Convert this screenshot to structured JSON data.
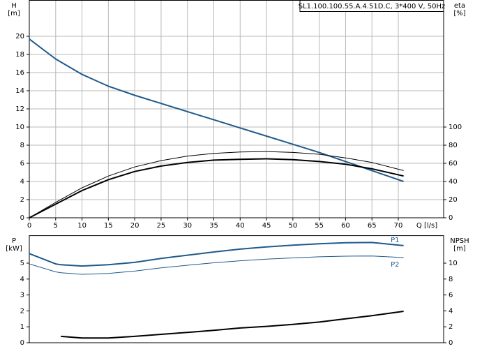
{
  "chart_data": [
    {
      "type": "line",
      "title": "SL1.100.100.55.A.4.51D.C, 3*400 V, 50Hz",
      "x_label": "Q [l/s]",
      "y_label": "H",
      "y_unit": "[m]",
      "y2_label": "eta",
      "y2_unit": "[%]",
      "x": [
        0,
        5,
        10,
        15,
        20,
        25,
        30,
        35,
        40,
        45,
        50,
        55,
        60,
        65,
        71
      ],
      "xlim": [
        0,
        78.6
      ],
      "xticks": [
        0,
        5,
        10,
        15,
        20,
        25,
        30,
        35,
        40,
        45,
        50,
        55,
        60,
        65,
        70
      ],
      "ylim": [
        0,
        24
      ],
      "yticks": [
        0,
        2,
        4,
        6,
        8,
        10,
        12,
        14,
        16,
        18,
        20
      ],
      "y2lim": [
        0,
        240
      ],
      "y2ticks": [
        0,
        20,
        40,
        60,
        80,
        100
      ],
      "grid": true,
      "series": [
        {
          "color": "#1f5a8c",
          "line_width": 2,
          "values": [
            19.7,
            17.5,
            15.8,
            14.5,
            13.5,
            12.6,
            11.7,
            10.8,
            9.9,
            9.0,
            8.1,
            7.2,
            6.2,
            5.2,
            4.0
          ]
        },
        {
          "color": "#000000",
          "line_width": 1,
          "axis": "y2",
          "values": [
            0,
            17,
            33,
            46,
            56,
            63,
            68,
            71,
            72.5,
            73,
            72,
            70,
            66,
            61,
            52
          ]
        },
        {
          "color": "#000000",
          "line_width": 2,
          "axis": "y2",
          "values": [
            0,
            15,
            30,
            42,
            51,
            57,
            61,
            63.5,
            64.5,
            65,
            64,
            62,
            59,
            54,
            46
          ]
        }
      ]
    },
    {
      "type": "line",
      "y_label": "P",
      "y_unit": "[kW]",
      "y2_label": "NPSH",
      "y2_unit": "[m]",
      "x": [
        0,
        5,
        6,
        10,
        15,
        20,
        25,
        30,
        35,
        40,
        45,
        50,
        55,
        60,
        65,
        71
      ],
      "xlim": [
        0,
        78.6
      ],
      "ylim": [
        0,
        6.75
      ],
      "yticks": [
        0,
        1,
        2,
        3,
        4,
        5
      ],
      "y2lim": [
        0,
        13.5
      ],
      "y2ticks": [
        0,
        2,
        4,
        6,
        8,
        10
      ],
      "grid": false,
      "series": [
        {
          "name": "P1",
          "color": "#1f5a8c",
          "line_width": 2,
          "values": [
            5.6,
            4.95,
            4.9,
            4.82,
            4.9,
            5.05,
            5.3,
            5.5,
            5.7,
            5.88,
            6.02,
            6.13,
            6.22,
            6.28,
            6.3,
            6.1
          ]
        },
        {
          "name": "P2",
          "color": "#1f5a8c",
          "line_width": 1,
          "values": [
            4.95,
            4.45,
            4.4,
            4.3,
            4.35,
            4.5,
            4.7,
            4.87,
            5.02,
            5.15,
            5.25,
            5.33,
            5.4,
            5.44,
            5.45,
            5.35
          ]
        },
        {
          "color": "#000000",
          "line_width": 2,
          "axis": "y2",
          "values": [
            null,
            null,
            0.8,
            0.6,
            0.6,
            0.8,
            1.05,
            1.3,
            1.55,
            1.85,
            2.05,
            2.3,
            2.6,
            3.0,
            3.4,
            3.95
          ]
        }
      ]
    }
  ]
}
